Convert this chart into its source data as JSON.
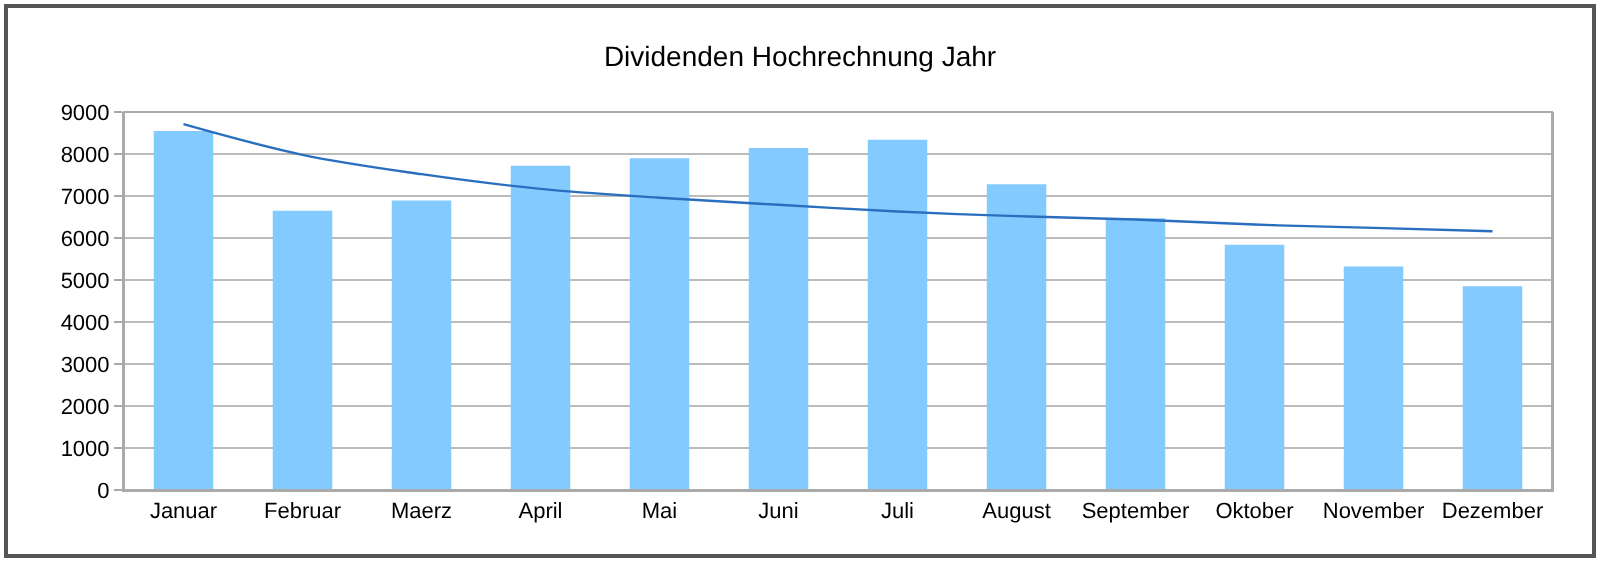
{
  "chart_data": {
    "type": "bar",
    "title": "Dividenden Hochrechnung Jahr",
    "categories": [
      "Januar",
      "Februar",
      "Maerz",
      "April",
      "Mai",
      "Juni",
      "Juli",
      "August",
      "September",
      "Oktober",
      "November",
      "Dezember"
    ],
    "series": [
      {
        "color": "#83caff",
        "values": [
          8550,
          6650,
          6890,
          7720,
          7900,
          8140,
          8340,
          7280,
          6470,
          5840,
          5320,
          4850
        ]
      },
      {
        "type": "line",
        "color": "#2a6ebf",
        "values": [
          8710,
          7980,
          7520,
          7170,
          6960,
          6790,
          6630,
          6520,
          6440,
          6320,
          6240,
          6160
        ]
      }
    ],
    "ylim": [
      0,
      9000
    ],
    "yticks": [
      0,
      1000,
      2000,
      3000,
      4000,
      5000,
      6000,
      7000,
      8000,
      9000
    ],
    "grid": "y"
  }
}
